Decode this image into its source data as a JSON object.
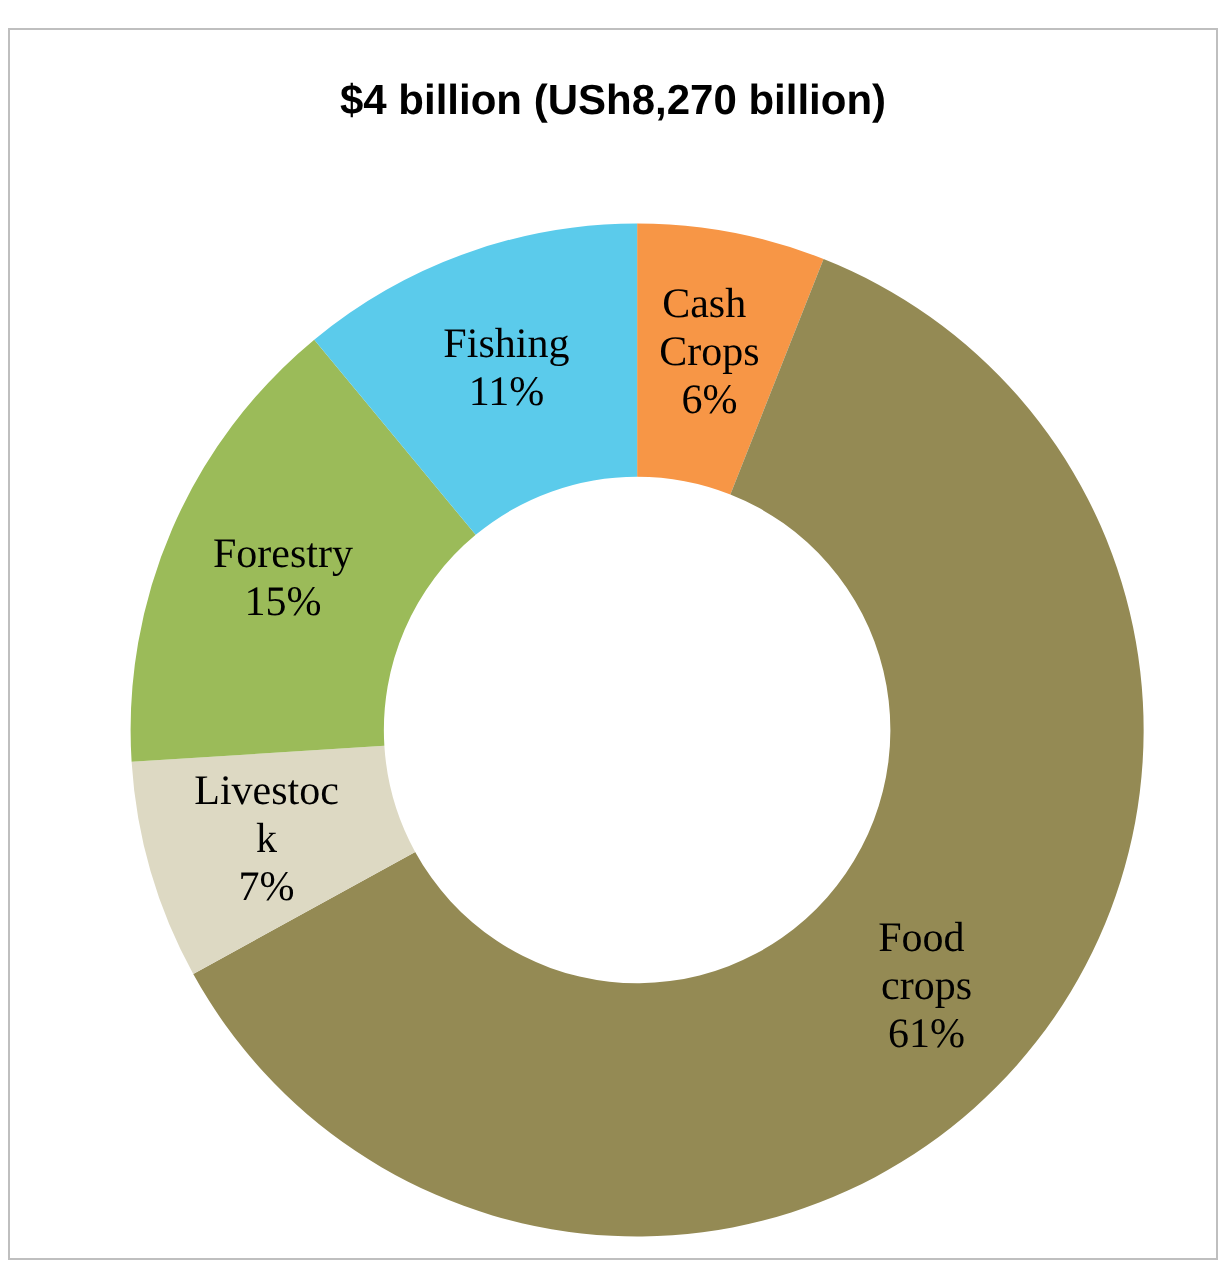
{
  "chart_data": {
    "type": "donut",
    "title": "$4 billion (USh8,270 billion)",
    "categories": [
      "Cash Crops",
      "Food crops",
      "Livestock",
      "Forestry",
      "Fishing"
    ],
    "values": [
      6,
      61,
      7,
      15,
      11
    ],
    "value_labels": [
      "6%",
      "61%",
      "7%",
      "15%",
      "11%"
    ],
    "colors": [
      "#f79646",
      "#948a54",
      "#ddd9c3",
      "#9bbb59",
      "#5bcbeb"
    ],
    "legend": false
  }
}
